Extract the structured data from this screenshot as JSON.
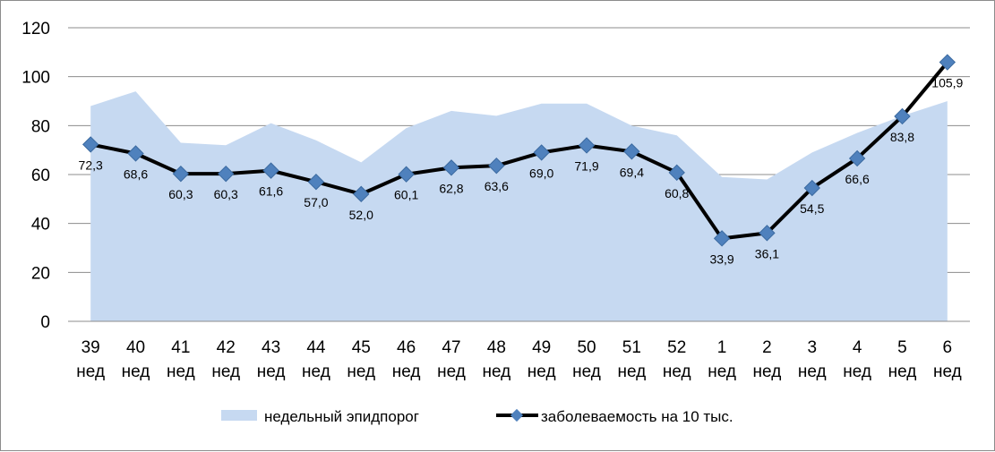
{
  "chart_data": {
    "type": "line",
    "categories": [
      [
        "39",
        "нед"
      ],
      [
        "40",
        "нед"
      ],
      [
        "41",
        "нед"
      ],
      [
        "42",
        "нед"
      ],
      [
        "43",
        "нед"
      ],
      [
        "44",
        "нед"
      ],
      [
        "45",
        "нед"
      ],
      [
        "46",
        "нед"
      ],
      [
        "47",
        "нед"
      ],
      [
        "48",
        "нед"
      ],
      [
        "49",
        "нед"
      ],
      [
        "50",
        "нед"
      ],
      [
        "51",
        "нед"
      ],
      [
        "52",
        "нед"
      ],
      [
        "1",
        "нед"
      ],
      [
        "2",
        "нед"
      ],
      [
        "3",
        "нед"
      ],
      [
        "4",
        "нед"
      ],
      [
        "5",
        "нед"
      ],
      [
        "6",
        "нед"
      ]
    ],
    "series": [
      {
        "name": "недельный эпидпорог",
        "kind": "area",
        "color": "#c6d9f1",
        "values": [
          88,
          94,
          73,
          72,
          81,
          74,
          65,
          79,
          86,
          84,
          89,
          89,
          80,
          76,
          59,
          58,
          69,
          77,
          84,
          90
        ]
      },
      {
        "name": "заболеваемость на 10 тыс.",
        "kind": "line",
        "color": "#000000",
        "marker_color": "#4f81bd",
        "values": [
          72.3,
          68.6,
          60.3,
          60.3,
          61.6,
          57.0,
          52.0,
          60.1,
          62.8,
          63.6,
          69.0,
          71.9,
          69.4,
          60.8,
          33.9,
          36.1,
          54.5,
          66.6,
          83.8,
          105.9
        ],
        "labels": [
          "72,3",
          "68,6",
          "60,3",
          "60,3",
          "61,6",
          "57,0",
          "52,0",
          "60,1",
          "62,8",
          "63,6",
          "69,0",
          "71,9",
          "69,4",
          "60,8",
          "33,9",
          "36,1",
          "54,5",
          "66,6",
          "83,8",
          "105,9"
        ]
      }
    ],
    "ylim": [
      0,
      120
    ],
    "yticks": [
      "0",
      "20",
      "40",
      "60",
      "80",
      "100",
      "120"
    ],
    "grid": true,
    "legend": "bottom"
  }
}
